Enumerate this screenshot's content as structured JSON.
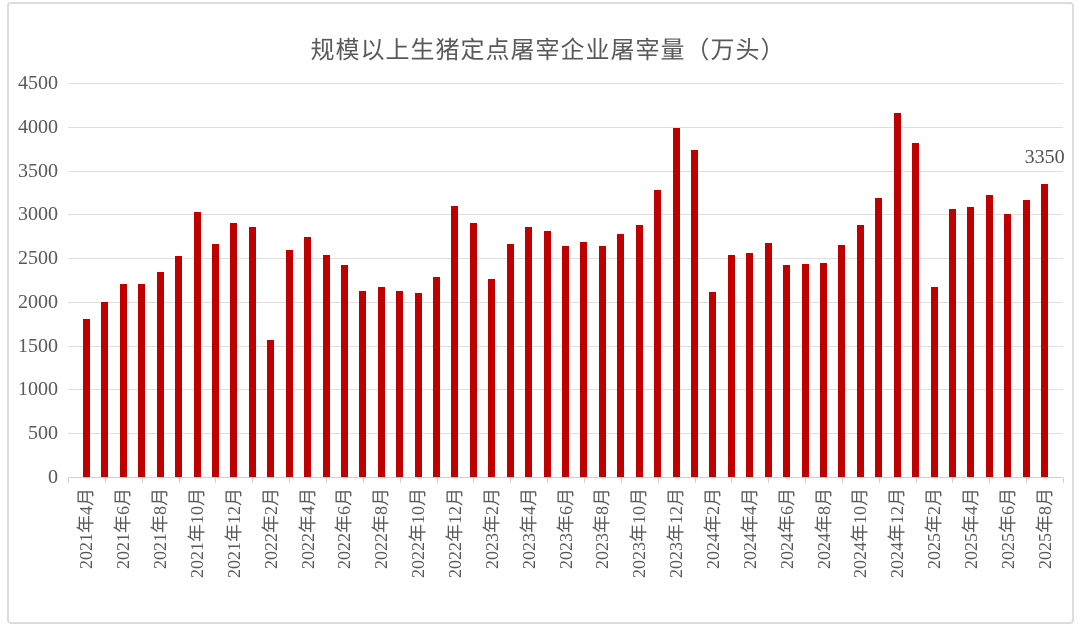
{
  "chart_data": {
    "type": "bar",
    "title": "规模以上生猪定点屠宰企业屠宰量（万头）",
    "categories": [
      "2021年4月",
      "2021年5月",
      "2021年6月",
      "2021年7月",
      "2021年8月",
      "2021年9月",
      "2021年10月",
      "2021年11月",
      "2021年12月",
      "2022年1月",
      "2022年2月",
      "2022年3月",
      "2022年4月",
      "2022年5月",
      "2022年6月",
      "2022年7月",
      "2022年8月",
      "2022年9月",
      "2022年10月",
      "2022年11月",
      "2022年12月",
      "2023年1月",
      "2023年2月",
      "2023年3月",
      "2023年4月",
      "2023年5月",
      "2023年6月",
      "2023年7月",
      "2023年8月",
      "2023年9月",
      "2023年10月",
      "2023年11月",
      "2023年12月",
      "2024年1月",
      "2024年2月",
      "2024年3月",
      "2024年4月",
      "2024年5月",
      "2024年6月",
      "2024年7月",
      "2024年8月",
      "2024年9月",
      "2024年10月",
      "2024年11月",
      "2024年12月",
      "2025年1月",
      "2025年2月",
      "2025年3月",
      "2025年4月",
      "2025年5月",
      "2025年6月",
      "2025年7月",
      "2025年8月"
    ],
    "values": [
      1800,
      2000,
      2210,
      2200,
      2340,
      2520,
      3030,
      2660,
      2900,
      2860,
      1560,
      2590,
      2740,
      2540,
      2420,
      2120,
      2170,
      2120,
      2100,
      2280,
      3100,
      2900,
      2260,
      2660,
      2860,
      2810,
      2640,
      2680,
      2640,
      2780,
      2880,
      3280,
      3990,
      3730,
      2110,
      2540,
      2560,
      2670,
      2420,
      2430,
      2450,
      2650,
      2880,
      3190,
      4160,
      3820,
      2170,
      3060,
      3080,
      3220,
      3000,
      3160,
      3350
    ],
    "xlabel": "",
    "ylabel": "",
    "ylim": [
      0,
      4500
    ],
    "ytick_interval": 500,
    "yticks": [
      0,
      500,
      1000,
      1500,
      2000,
      2500,
      3000,
      3500,
      4000,
      4500
    ],
    "xtick_labeled_every": 2,
    "xtick_labels_shown": [
      "2021年4月",
      "2021年6月",
      "2021年8月",
      "2021年10月",
      "2021年12月",
      "2022年2月",
      "2022年4月",
      "2022年6月",
      "2022年8月",
      "2022年10月",
      "2022年12月",
      "2023年2月",
      "2023年4月",
      "2023年6月",
      "2023年8月",
      "2023年10月",
      "2023年12月",
      "2024年2月",
      "2024年4月",
      "2024年6月",
      "2024年8月",
      "2024年10月",
      "2024年12月",
      "2025年2月",
      "2025年4月",
      "2025年6月",
      "2025年8月"
    ],
    "grid": "horizontal",
    "legend": "none",
    "annotations": [
      {
        "category": "2025年8月",
        "text": "3350",
        "value": 3350
      }
    ],
    "bar_color": "#c00000",
    "gridline_color": "#dedede",
    "axis_label_color": "#595959",
    "annotation_color": "#525252"
  }
}
